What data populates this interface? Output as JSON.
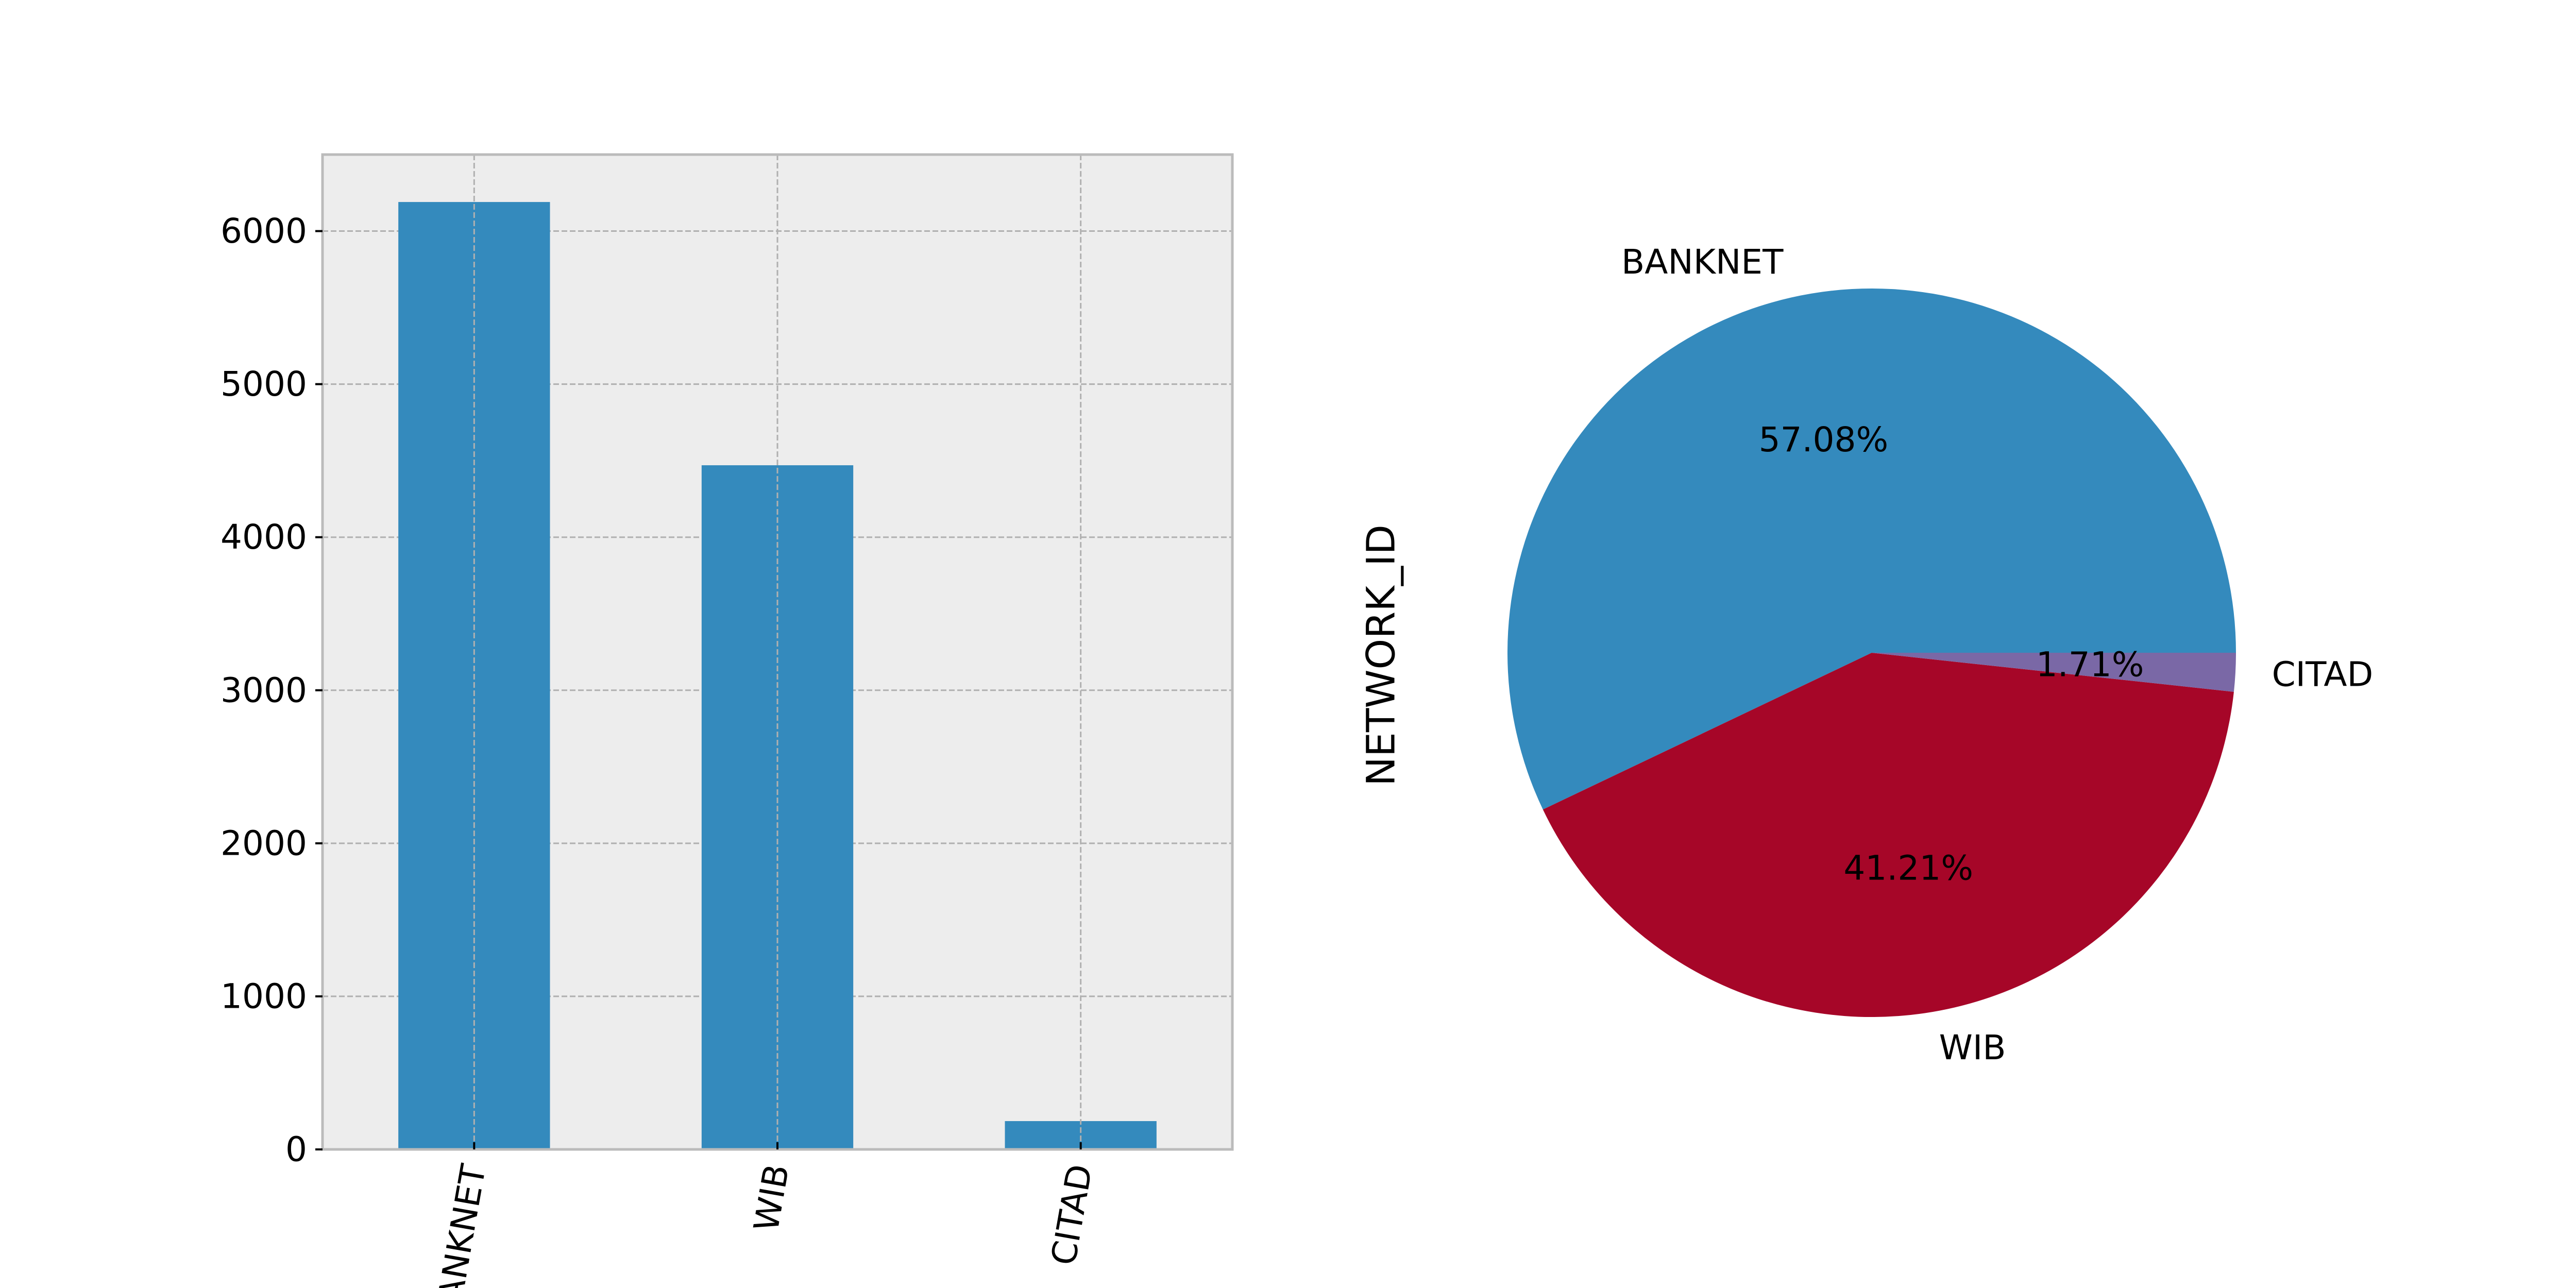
{
  "colors": {
    "axes_bg": "#EDEDED",
    "grid": "#B0B0B0",
    "spine": "#BBBBBB",
    "bar": "#348ABD",
    "pie": [
      "#348ABD",
      "#A60628",
      "#7A68A6"
    ]
  },
  "chart_data": [
    {
      "type": "bar",
      "categories": [
        "BANKNET",
        "WIB",
        "CITAD"
      ],
      "values": [
        6190,
        4470,
        185
      ],
      "ylim": [
        0,
        6500
      ],
      "yticks": [
        0,
        1000,
        2000,
        3000,
        4000,
        5000,
        6000
      ],
      "xlabel": "",
      "ylabel": "",
      "grid": true
    },
    {
      "type": "pie",
      "ylabel": "NETWORK_ID",
      "slices": [
        {
          "label": "BANKNET",
          "value": 57.08,
          "pct_label": "57.08%"
        },
        {
          "label": "WIB",
          "value": 41.21,
          "pct_label": "41.21%"
        },
        {
          "label": "CITAD",
          "value": 1.71,
          "pct_label": "1.71%"
        }
      ]
    }
  ]
}
